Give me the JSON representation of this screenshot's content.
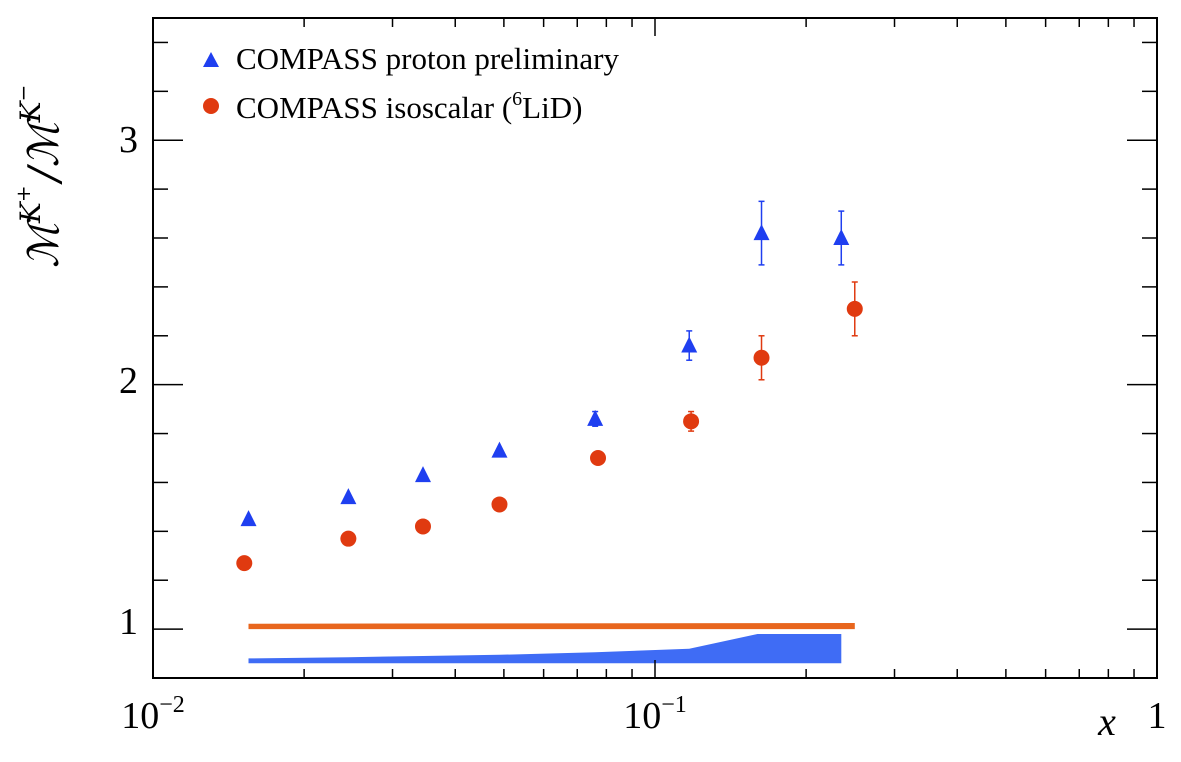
{
  "chart_data": {
    "type": "scatter",
    "x_scale": "log",
    "xlim": [
      0.01,
      1
    ],
    "ylim": [
      0.8,
      3.5
    ],
    "xlabel": "x",
    "ylabel_parts": [
      "ℳ",
      "K",
      "+",
      "/",
      "ℳ",
      "K",
      "−"
    ],
    "x_ticks": [
      {
        "value": 0.01,
        "base": "10",
        "exp": "−2"
      },
      {
        "value": 0.1,
        "base": "10",
        "exp": "−1"
      },
      {
        "value": 1,
        "base": "1",
        "exp": ""
      }
    ],
    "y_ticks": [
      {
        "value": 1,
        "label": "1"
      },
      {
        "value": 2,
        "label": "2"
      },
      {
        "value": 3,
        "label": "3"
      }
    ],
    "legend": {
      "placement": "top-left",
      "entries": [
        {
          "label": "COMPASS proton preliminary"
        },
        {
          "label_prefix": "COMPASS isoscalar (",
          "label_sup": "6",
          "label_suffix": "LiD)"
        }
      ]
    },
    "series": [
      {
        "name": "COMPASS proton preliminary",
        "marker": "triangle",
        "color": "#1f3ff0",
        "x": [
          0.0155,
          0.0245,
          0.0345,
          0.049,
          0.076,
          0.117,
          0.163,
          0.235
        ],
        "y": [
          1.45,
          1.54,
          1.63,
          1.73,
          1.86,
          2.16,
          2.62,
          2.6
        ],
        "yerr": [
          0.005,
          0.005,
          0.006,
          0.01,
          0.03,
          0.06,
          0.13,
          0.11
        ]
      },
      {
        "name": "COMPASS isoscalar (6LiD)",
        "marker": "circle",
        "color": "#e03a10",
        "x": [
          0.0152,
          0.0245,
          0.0345,
          0.049,
          0.077,
          0.118,
          0.163,
          0.25
        ],
        "y": [
          1.27,
          1.37,
          1.42,
          1.51,
          1.7,
          1.85,
          2.11,
          2.31
        ],
        "yerr": [
          0.005,
          0.005,
          0.005,
          0.01,
          0.02,
          0.04,
          0.09,
          0.11
        ]
      }
    ],
    "systematic_bands": [
      {
        "color": "#e8661e",
        "x": [
          0.0155,
          0.25
        ],
        "y_low": [
          1.0,
          1.0
        ],
        "y_high": [
          1.022,
          1.025
        ]
      },
      {
        "color": "#3f6cf5",
        "x": [
          0.0155,
          0.0245,
          0.0345,
          0.049,
          0.076,
          0.117,
          0.16,
          0.235
        ],
        "y_low": [
          0.86,
          0.86,
          0.86,
          0.86,
          0.86,
          0.86,
          0.86,
          0.86
        ],
        "y_high": [
          0.88,
          0.885,
          0.89,
          0.895,
          0.905,
          0.92,
          0.98,
          0.98
        ]
      }
    ]
  }
}
